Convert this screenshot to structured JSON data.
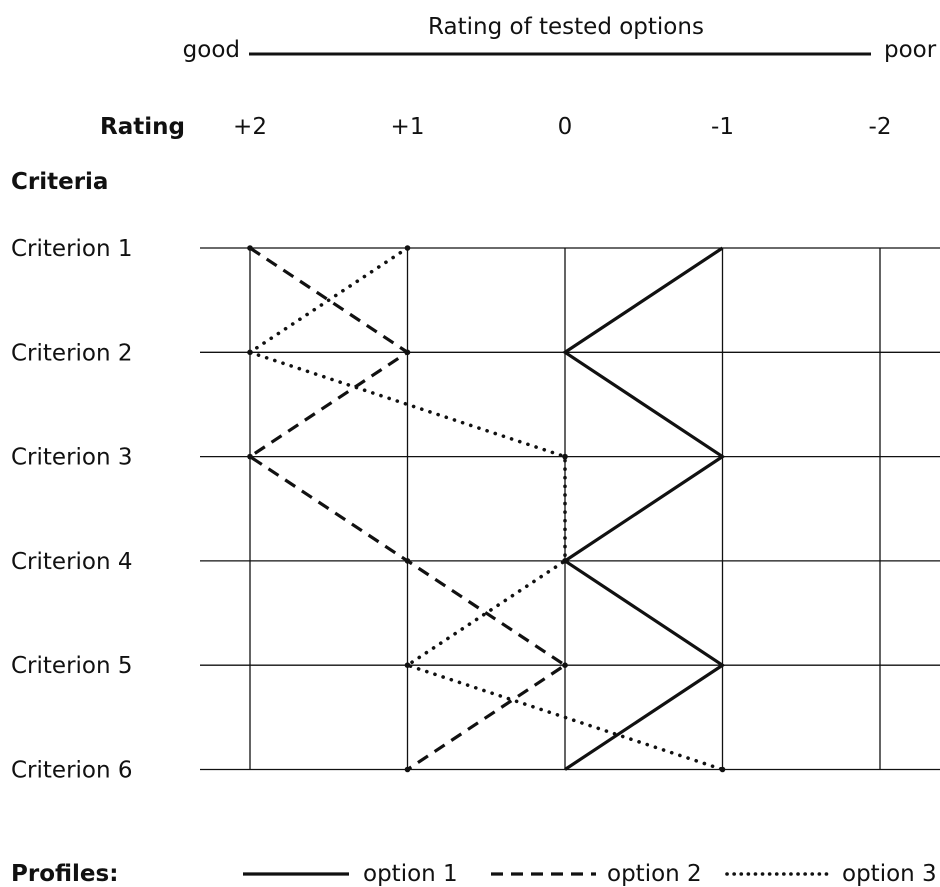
{
  "chart_data": {
    "type": "line",
    "title": "Rating of tested options",
    "scale_left_label": "good",
    "scale_right_label": "poor",
    "rating_header": "Rating",
    "criteria_header": "Criteria",
    "x_ticks": [
      {
        "value": 2,
        "label": "+2"
      },
      {
        "value": 1,
        "label": "+1"
      },
      {
        "value": 0,
        "label": "0"
      },
      {
        "value": -1,
        "label": "-1"
      },
      {
        "value": -2,
        "label": "-2"
      }
    ],
    "xlim": [
      2,
      -2
    ],
    "categories": [
      "Criterion 1",
      "Criterion 2",
      "Criterion 3",
      "Criterion 4",
      "Criterion 5",
      "Criterion 6"
    ],
    "series": [
      {
        "name": "option 1",
        "style": "solid",
        "values": [
          -1,
          0,
          -1,
          0,
          -1,
          0
        ]
      },
      {
        "name": "option 2",
        "style": "dashed",
        "values": [
          2,
          1,
          2,
          1,
          0,
          1
        ]
      },
      {
        "name": "option 3",
        "style": "dotted",
        "values": [
          1,
          2,
          0,
          0,
          1,
          -1
        ]
      }
    ],
    "legend_title": "Profiles:",
    "legend_position": "bottom",
    "grid": true,
    "colors": {
      "ink": "#111111",
      "background": "#ffffff"
    }
  }
}
